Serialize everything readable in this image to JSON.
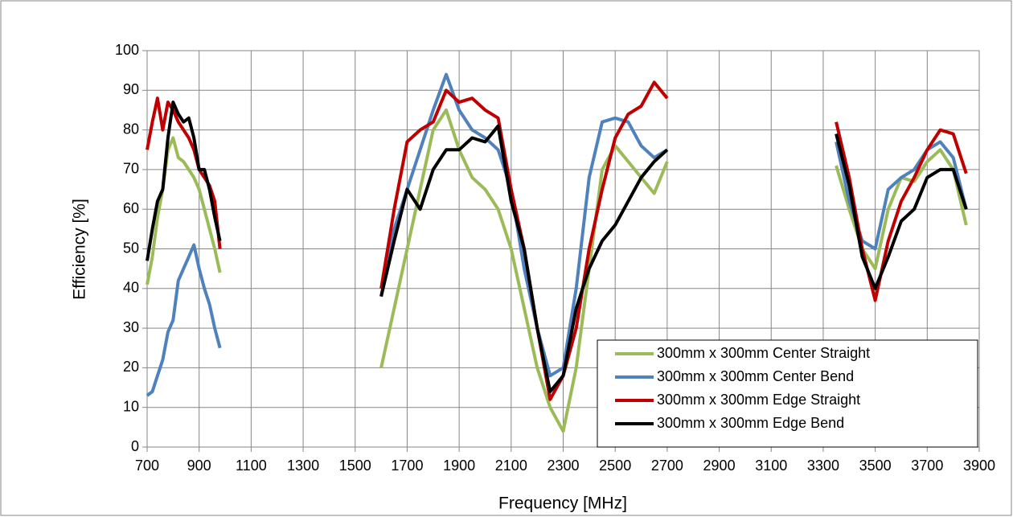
{
  "chart_data": {
    "type": "line",
    "xlabel": "Frequency [MHz]",
    "ylabel": "Efficiency [%]",
    "x": [
      700,
      720,
      740,
      760,
      780,
      800,
      820,
      840,
      860,
      880,
      900,
      920,
      940,
      960,
      980,
      1300,
      1600,
      1650,
      1700,
      1750,
      1800,
      1850,
      1900,
      1950,
      2000,
      2050,
      2100,
      2150,
      2200,
      2250,
      2300,
      2350,
      2400,
      2450,
      2500,
      2550,
      2600,
      2650,
      2700,
      3000,
      3350,
      3400,
      3450,
      3500,
      3550,
      3600,
      3650,
      3700,
      3750,
      3800,
      3850
    ],
    "series": [
      {
        "name": "300mm x 300mm Center Straight",
        "color": "#9bbb59",
        "values": [
          41,
          48,
          58,
          65,
          75,
          78,
          73,
          72,
          70,
          68,
          65,
          60,
          55,
          50,
          44,
          null,
          20,
          35,
          50,
          65,
          80,
          85,
          75,
          68,
          65,
          60,
          50,
          35,
          20,
          10,
          4,
          20,
          45,
          70,
          76,
          72,
          68,
          64,
          72,
          null,
          71,
          60,
          50,
          45,
          60,
          68,
          67,
          72,
          75,
          70,
          56
        ]
      },
      {
        "name": "300mm x 300mm Center Bend",
        "color": "#4f81bd",
        "values": [
          13,
          14,
          18,
          22,
          29,
          32,
          42,
          45,
          48,
          51,
          45,
          40,
          36,
          30,
          25,
          null,
          38,
          55,
          65,
          75,
          85,
          94,
          85,
          80,
          78,
          75,
          65,
          45,
          30,
          18,
          20,
          40,
          68,
          82,
          83,
          82,
          76,
          73,
          75,
          null,
          77,
          62,
          52,
          50,
          65,
          68,
          70,
          75,
          77,
          73,
          60
        ]
      },
      {
        "name": "300mm x 300mm Edge Straight",
        "color": "#c00000",
        "values": [
          75,
          82,
          88,
          80,
          87,
          85,
          82,
          80,
          78,
          75,
          70,
          68,
          66,
          62,
          50,
          null,
          40,
          60,
          77,
          80,
          82,
          90,
          87,
          88,
          85,
          83,
          65,
          50,
          30,
          12,
          18,
          30,
          50,
          65,
          78,
          84,
          86,
          92,
          88,
          null,
          82,
          68,
          50,
          37,
          52,
          62,
          68,
          75,
          80,
          79,
          69
        ]
      },
      {
        "name": "300mm x 300mm Edge Bend",
        "color": "#000000",
        "values": [
          47,
          55,
          62,
          65,
          78,
          87,
          84,
          82,
          83,
          78,
          70,
          70,
          65,
          58,
          52,
          null,
          38,
          52,
          65,
          60,
          70,
          75,
          75,
          78,
          77,
          81,
          62,
          50,
          30,
          14,
          18,
          35,
          45,
          52,
          56,
          62,
          68,
          72,
          75,
          null,
          79,
          66,
          48,
          40,
          48,
          57,
          60,
          68,
          70,
          70,
          60
        ]
      }
    ],
    "xlim": [
      700,
      3900
    ],
    "xticks": [
      700,
      900,
      1100,
      1300,
      1500,
      1700,
      1900,
      2100,
      2300,
      2500,
      2700,
      2900,
      3100,
      3300,
      3500,
      3700,
      3900
    ],
    "ylim": [
      0,
      100
    ],
    "yticks": [
      0,
      10,
      20,
      30,
      40,
      50,
      60,
      70,
      80,
      90,
      100
    ],
    "grid": true,
    "legend": "lower right"
  }
}
